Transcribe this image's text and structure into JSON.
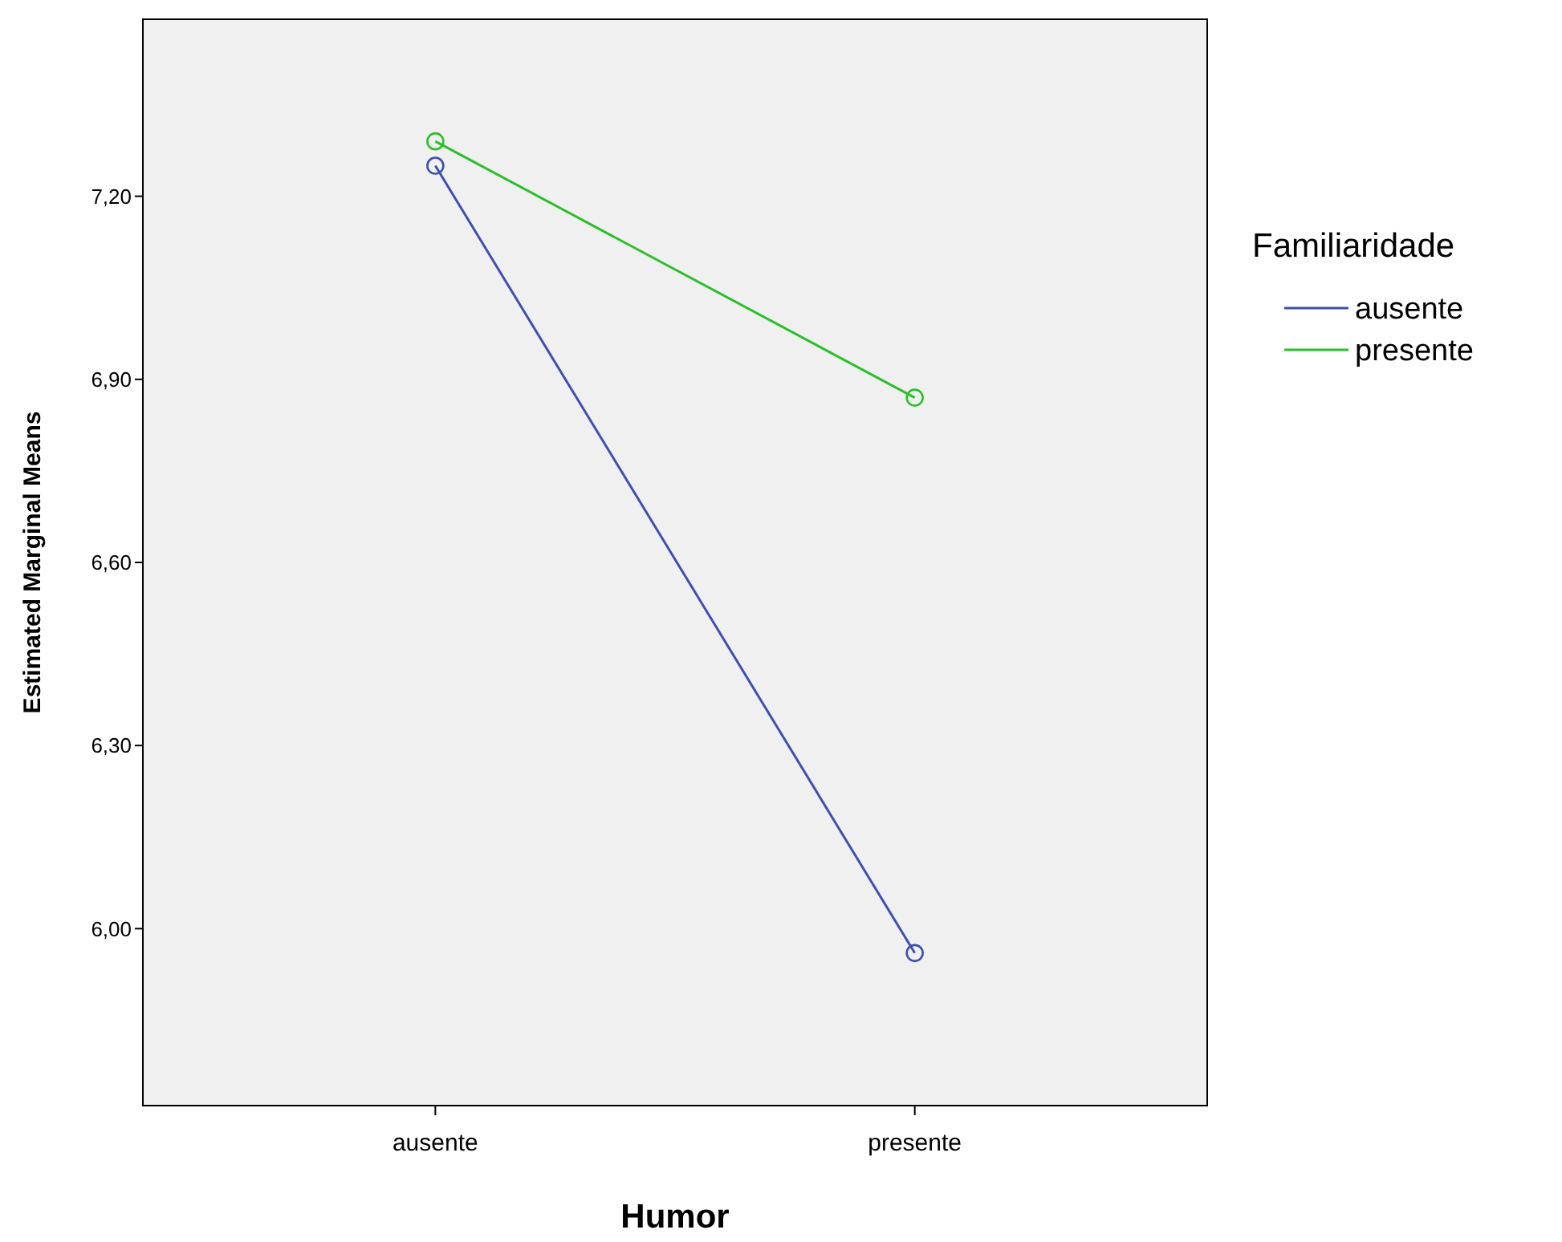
{
  "chart_data": {
    "type": "line",
    "xlabel": "Humor",
    "ylabel": "Estimated Marginal Means",
    "legend_title": "Familiaridade",
    "categories": [
      "ausente",
      "presente"
    ],
    "series": [
      {
        "name": "ausente",
        "color": "#3e4fae",
        "values": [
          7.25,
          5.96
        ]
      },
      {
        "name": "presente",
        "color": "#2bbf2b",
        "values": [
          7.29,
          6.87
        ]
      }
    ],
    "ylim": [
      5.71,
      7.49
    ],
    "yticks": [
      {
        "value": 6.0,
        "label": "6,00"
      },
      {
        "value": 6.3,
        "label": "6,30"
      },
      {
        "value": 6.6,
        "label": "6,60"
      },
      {
        "value": 6.9,
        "label": "6,90"
      },
      {
        "value": 7.2,
        "label": "7,20"
      }
    ],
    "grid": false,
    "legend": "right",
    "marker": "circle",
    "line_style": "solid"
  }
}
